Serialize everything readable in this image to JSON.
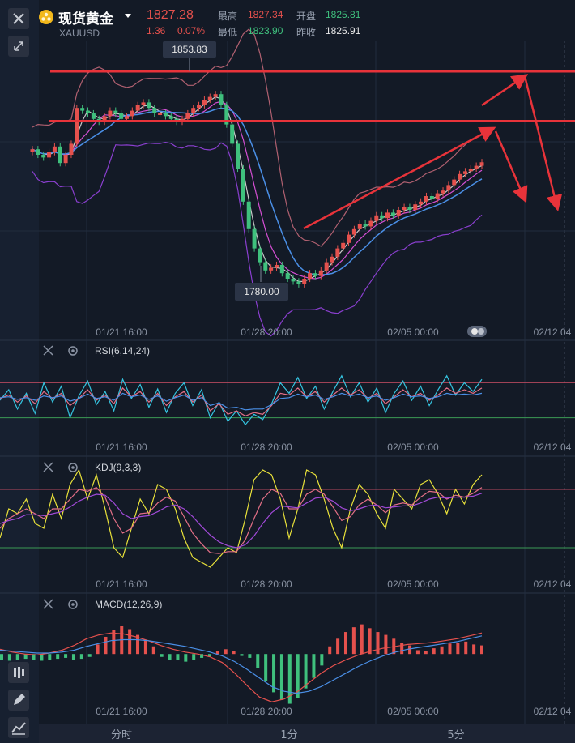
{
  "header": {
    "close_icon": "close-icon",
    "collapse_icon": "collapse-arrows-icon",
    "logo_icon": "gold-coin-icon",
    "title": "现货黄金",
    "symbol": "XAUUSD",
    "price": "1827.28",
    "change": "1.36",
    "change_pct": "0.07%",
    "high_label": "最高",
    "high": "1827.34",
    "open_label": "开盘",
    "open": "1825.81",
    "low_label": "最低",
    "low": "1823.90",
    "prev_label": "昨收",
    "prev": "1825.91"
  },
  "colors": {
    "up": "#e5514d",
    "down": "#3fc07d",
    "bg": "#131a26",
    "grid": "#243044",
    "ma1": "#c9c9c9",
    "ma2": "#d54fd4",
    "ma3": "#4a8fe6",
    "boll": "#b06070"
  },
  "toolbar": {
    "tabs": [
      "分时",
      "1分",
      "5分"
    ],
    "tools": [
      "candle-settings-icon",
      "pencil-icon",
      "indicator-icon"
    ]
  },
  "chart_data": [
    {
      "type": "candlestick",
      "title": "",
      "x_ticks": [
        "01/21 16:00",
        "01/28 20:00",
        "02/05 00:00",
        "02/12 04"
      ],
      "ylim": [
        1770,
        1870
      ],
      "annotations": {
        "high": "1853.83",
        "low": "1780.00"
      },
      "resistance_lines": [
        1850,
        1836
      ],
      "closes": [
        1832,
        1830,
        1829,
        1831,
        1833,
        1827,
        1830,
        1834,
        1847,
        1846,
        1845,
        1843,
        1842,
        1844,
        1846,
        1845,
        1843,
        1844,
        1846,
        1848,
        1849,
        1847,
        1845,
        1845,
        1844,
        1843,
        1842,
        1843,
        1845,
        1847,
        1848,
        1850,
        1851,
        1852,
        1848,
        1841,
        1834,
        1825,
        1813,
        1803,
        1796,
        1791,
        1788,
        1789,
        1790,
        1787,
        1785,
        1784,
        1783,
        1785,
        1787,
        1786,
        1788,
        1791,
        1793,
        1796,
        1798,
        1801,
        1803,
        1805,
        1804,
        1806,
        1808,
        1807,
        1809,
        1808,
        1810,
        1811,
        1810,
        1812,
        1813,
        1815,
        1814,
        1816,
        1817,
        1819,
        1821,
        1823,
        1824,
        1825,
        1826,
        1827.28
      ]
    },
    {
      "type": "line",
      "title": "RSI(6,14,24)",
      "x_ticks": [
        "01/21 16:00",
        "01/28 20:00",
        "02/05 00:00",
        "02/12 04"
      ],
      "ylim": [
        0,
        100
      ],
      "reference_lines": [
        70,
        30
      ],
      "series": [
        {
          "name": "RSI6",
          "color": "#35c4e0",
          "values": [
            50,
            62,
            40,
            58,
            35,
            70,
            48,
            66,
            30,
            55,
            72,
            45,
            60,
            38,
            74,
            52,
            68,
            42,
            63,
            36,
            58,
            70,
            44,
            62,
            30,
            48,
            26,
            38,
            22,
            34,
            28,
            46,
            70,
            58,
            76,
            52,
            66,
            40,
            60,
            78,
            54,
            70,
            48,
            64,
            36,
            58,
            72,
            50,
            66,
            44,
            62,
            78,
            56,
            70,
            60,
            74
          ]
        },
        {
          "name": "RSI14",
          "color": "#e36f86",
          "values": [
            52,
            56,
            48,
            55,
            46,
            60,
            52,
            58,
            44,
            52,
            62,
            50,
            56,
            46,
            64,
            54,
            60,
            48,
            58,
            44,
            54,
            60,
            48,
            56,
            38,
            46,
            34,
            38,
            32,
            36,
            34,
            44,
            58,
            56,
            64,
            54,
            60,
            48,
            56,
            64,
            56,
            62,
            52,
            58,
            46,
            54,
            62,
            54,
            58,
            50,
            56,
            64,
            58,
            62,
            58,
            64
          ]
        },
        {
          "name": "RSI24",
          "color": "#4a8fe6",
          "values": [
            53,
            54,
            51,
            53,
            50,
            55,
            53,
            55,
            49,
            52,
            57,
            52,
            54,
            50,
            58,
            54,
            56,
            51,
            55,
            49,
            53,
            56,
            50,
            53,
            44,
            47,
            41,
            42,
            39,
            40,
            40,
            45,
            52,
            53,
            57,
            54,
            56,
            51,
            54,
            58,
            55,
            57,
            53,
            55,
            50,
            53,
            57,
            54,
            55,
            52,
            54,
            58,
            56,
            57,
            56,
            58
          ]
        }
      ]
    },
    {
      "type": "line",
      "title": "KDJ(9,3,3)",
      "x_ticks": [
        "01/21 16:00",
        "01/28 20:00",
        "02/05 00:00",
        "02/12 04"
      ],
      "ylim": [
        -10,
        110
      ],
      "reference_lines": [
        80,
        20
      ],
      "series": [
        {
          "name": "J",
          "color": "#e9e23a",
          "values": [
            30,
            60,
            55,
            70,
            45,
            40,
            75,
            50,
            85,
            100,
            70,
            95,
            60,
            20,
            10,
            40,
            70,
            55,
            85,
            80,
            60,
            30,
            10,
            5,
            0,
            10,
            20,
            15,
            50,
            90,
            100,
            95,
            70,
            30,
            60,
            100,
            95,
            70,
            40,
            20,
            60,
            85,
            75,
            55,
            40,
            80,
            70,
            60,
            85,
            90,
            75,
            55,
            80,
            65,
            85,
            95
          ]
        },
        {
          "name": "K",
          "color": "#e36f86",
          "values": [
            40,
            50,
            55,
            60,
            55,
            50,
            60,
            60,
            70,
            80,
            78,
            82,
            72,
            50,
            35,
            40,
            55,
            56,
            66,
            72,
            68,
            52,
            35,
            24,
            15,
            14,
            16,
            16,
            28,
            50,
            70,
            80,
            76,
            60,
            60,
            75,
            80,
            75,
            62,
            48,
            52,
            64,
            70,
            64,
            56,
            64,
            66,
            64,
            72,
            78,
            77,
            70,
            74,
            72,
            76,
            82
          ]
        },
        {
          "name": "D",
          "color": "#a14ad8",
          "values": [
            45,
            48,
            50,
            54,
            54,
            53,
            55,
            57,
            62,
            68,
            72,
            75,
            74,
            66,
            55,
            50,
            52,
            53,
            57,
            62,
            64,
            60,
            52,
            42,
            33,
            26,
            22,
            20,
            23,
            32,
            45,
            56,
            63,
            62,
            61,
            66,
            71,
            72,
            68,
            61,
            58,
            60,
            63,
            64,
            61,
            62,
            63,
            63,
            66,
            70,
            72,
            71,
            72,
            72,
            73,
            76
          ]
        }
      ]
    },
    {
      "type": "bar",
      "title": "MACD(12,26,9)",
      "x_ticks": [
        "01/21 16:00",
        "01/28 20:00",
        "02/05 00:00",
        "02/12 04"
      ],
      "ylim": [
        -6,
        4
      ],
      "histogram": [
        -0.6,
        -0.7,
        -0.6,
        -0.5,
        -0.6,
        -0.7,
        -0.6,
        -0.5,
        -0.4,
        -0.6,
        -0.5,
        -0.3,
        1.0,
        1.8,
        2.5,
        2.9,
        2.6,
        2.0,
        1.5,
        0.8,
        -0.3,
        -0.6,
        -0.6,
        -0.8,
        -0.6,
        -0.4,
        -0.3,
        0.3,
        0.5,
        0.3,
        -0.2,
        -0.4,
        -1.5,
        -2.8,
        -4.0,
        -4.8,
        -5.2,
        -4.6,
        -3.6,
        -2.5,
        -1.2,
        0.8,
        1.6,
        2.3,
        2.8,
        3.1,
        2.7,
        2.3,
        2.0,
        1.6,
        1.2,
        0.9,
        0.4,
        0.3,
        0.6,
        0.8,
        1.1,
        1.2,
        1.3,
        1.0,
        0.9
      ],
      "series": [
        {
          "name": "DIF",
          "color": "#e5514d",
          "values": [
            0.5,
            0.2,
            0.0,
            -0.1,
            0.1,
            0.4,
            0.9,
            1.6,
            2.0,
            2.2,
            2.1,
            1.8,
            1.4,
            0.9,
            0.5,
            0.2,
            0.0,
            -0.3,
            -0.9,
            -2.0,
            -3.3,
            -4.5,
            -5.0,
            -4.7,
            -4.0,
            -3.0,
            -2.0,
            -1.2,
            -0.6,
            -0.1,
            0.3,
            0.6,
            0.8,
            1.0,
            1.1,
            1.2,
            1.4,
            1.6,
            1.9,
            2.2
          ]
        },
        {
          "name": "DEA",
          "color": "#4a8fe6",
          "values": [
            0.4,
            0.3,
            0.2,
            0.1,
            0.1,
            0.2,
            0.4,
            0.8,
            1.1,
            1.4,
            1.5,
            1.5,
            1.4,
            1.2,
            1.0,
            0.8,
            0.5,
            0.2,
            -0.2,
            -0.8,
            -1.6,
            -2.5,
            -3.4,
            -3.9,
            -4.1,
            -3.9,
            -3.4,
            -2.7,
            -2.0,
            -1.3,
            -0.7,
            -0.2,
            0.2,
            0.5,
            0.7,
            0.9,
            1.1,
            1.3,
            1.6,
            1.9
          ]
        }
      ]
    }
  ]
}
